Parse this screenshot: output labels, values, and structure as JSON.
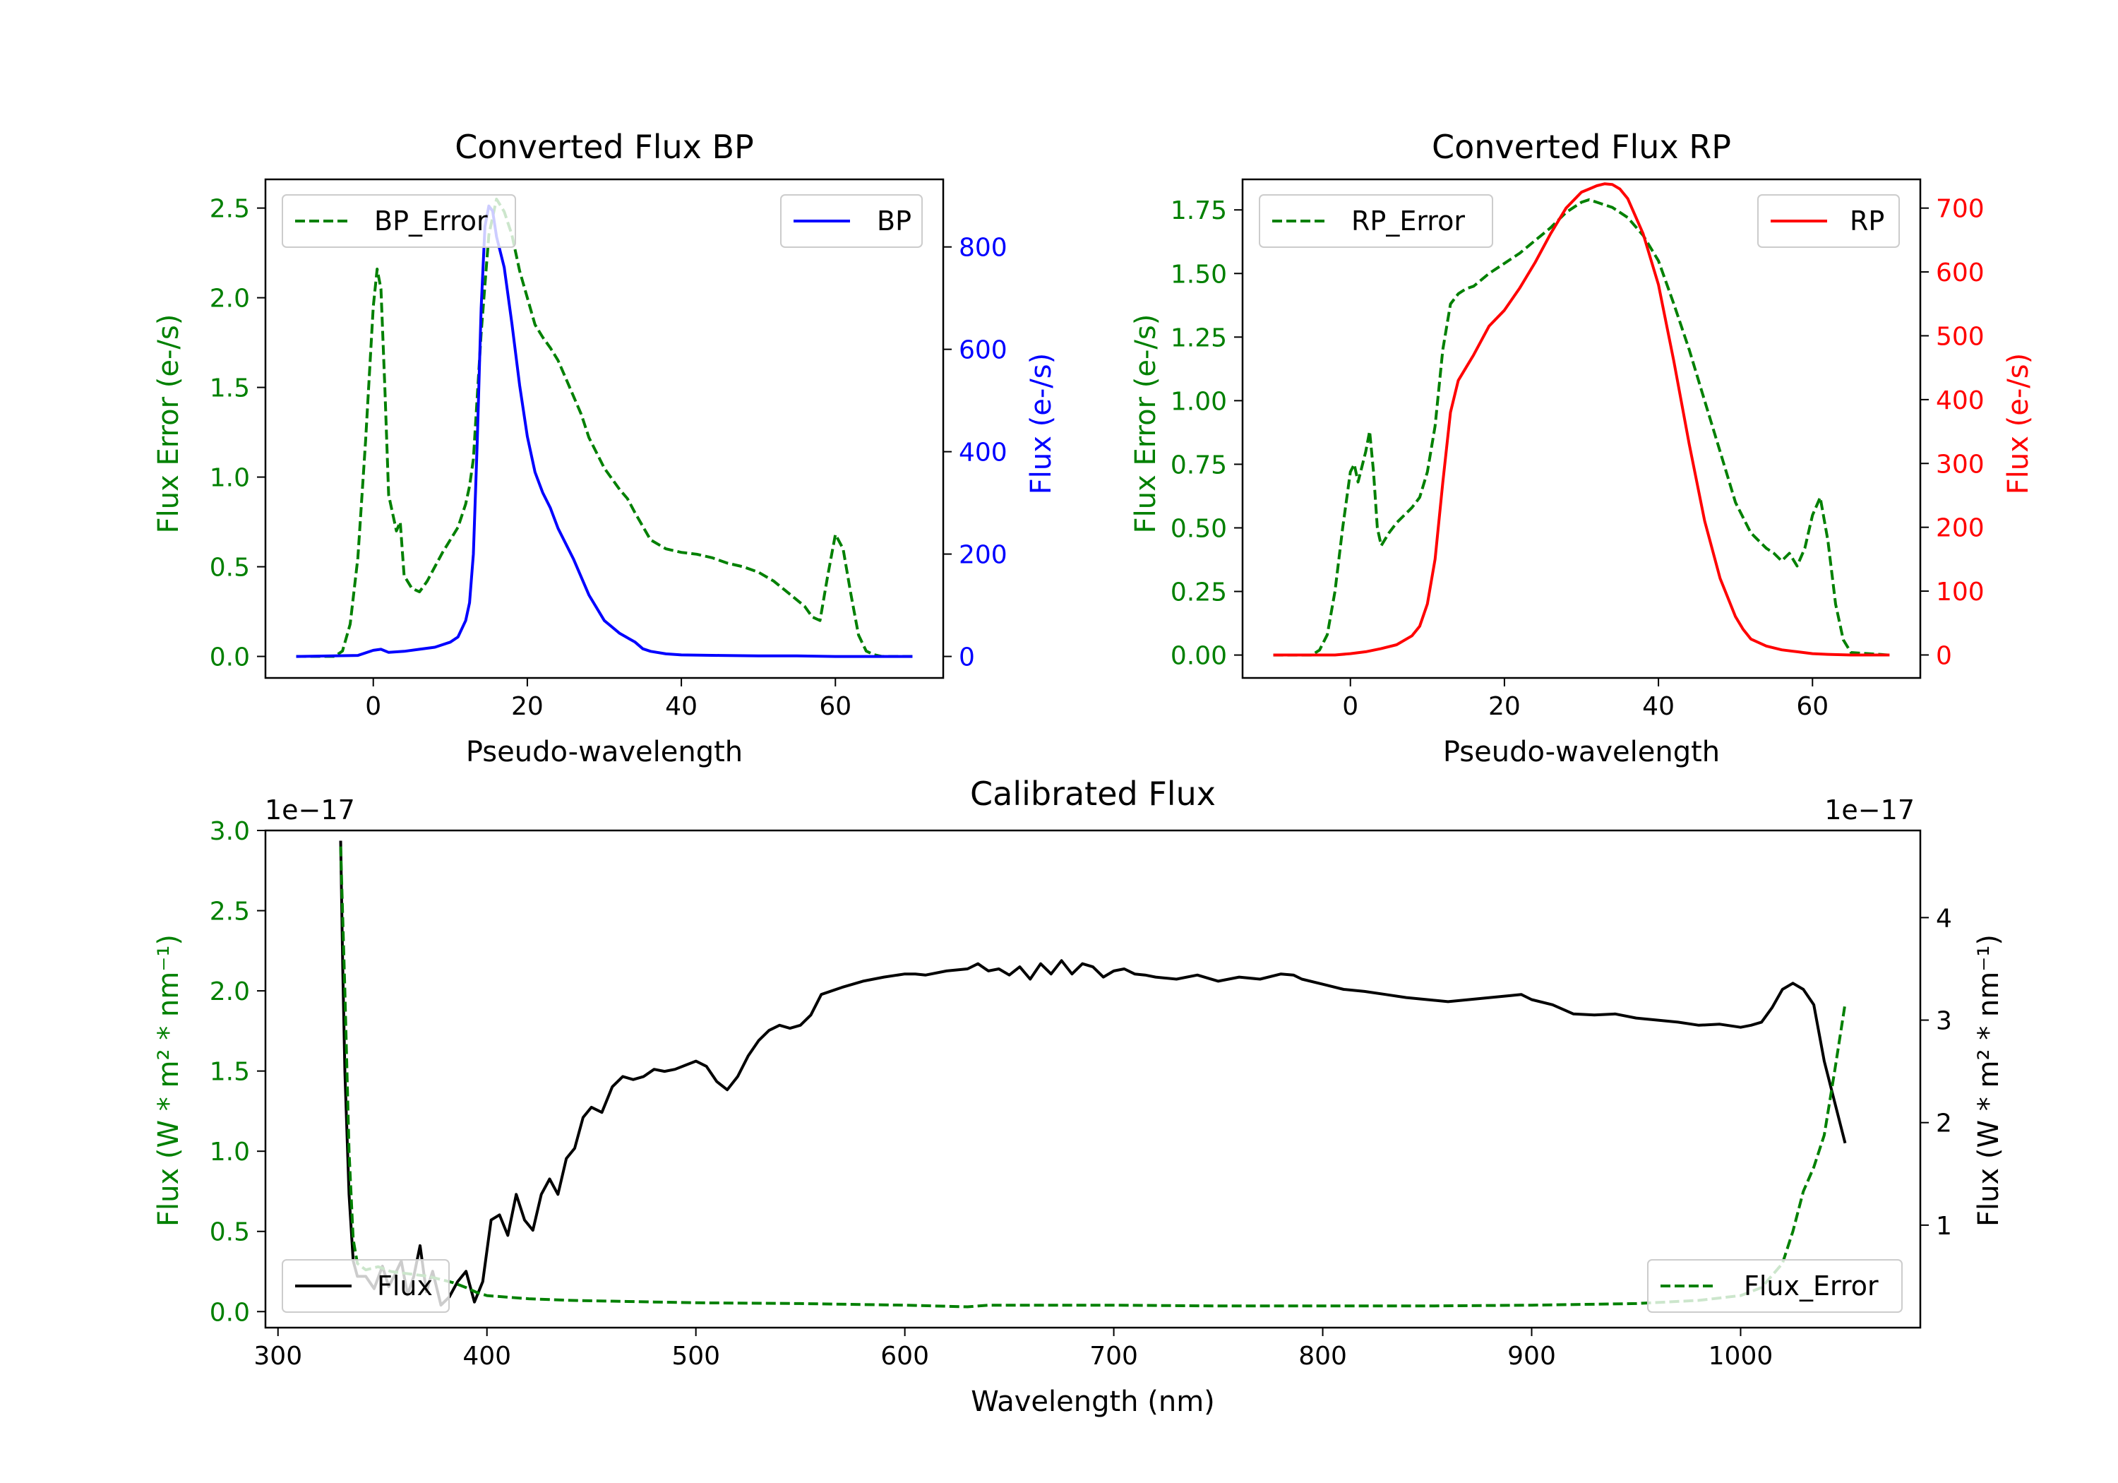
{
  "figure": {
    "background": "#ffffff"
  },
  "chart_data": [
    {
      "id": "bp",
      "type": "line",
      "title": "Converted Flux BP",
      "xlabel": "Pseudo-wavelength",
      "xlim": [
        -14,
        74
      ],
      "xticks": [
        0,
        20,
        40,
        60
      ],
      "left_axis": {
        "label": "Flux Error (e-/s)",
        "color": "#008000",
        "ylim": [
          -0.12,
          2.66
        ],
        "ticks": [
          "0.0",
          "0.5",
          "1.0",
          "1.5",
          "2.0",
          "2.5"
        ],
        "tick_values": [
          0,
          0.5,
          1.0,
          1.5,
          2.0,
          2.5
        ]
      },
      "right_axis": {
        "label": "Flux (e-/s)",
        "color": "#0000ff",
        "ylim": [
          -42,
          932
        ],
        "ticks": [
          "0",
          "200",
          "400",
          "600",
          "800"
        ],
        "tick_values": [
          0,
          200,
          400,
          600,
          800
        ]
      },
      "series": [
        {
          "name": "BP_Error",
          "axis": "left",
          "style": "dashed",
          "color": "#008000",
          "x": [
            -10,
            -5,
            -4,
            -3,
            -2,
            -1,
            0,
            0.5,
            1,
            1.5,
            2,
            3,
            3.5,
            4,
            5,
            6,
            7,
            8,
            9,
            10,
            11,
            12,
            12.5,
            13,
            14,
            15,
            16,
            17,
            18,
            19,
            20,
            21,
            22,
            23,
            24,
            25,
            26,
            27,
            28,
            30,
            32,
            33,
            34,
            36,
            38,
            40,
            42,
            44,
            46,
            48,
            50,
            52,
            54,
            56,
            57,
            58,
            59,
            60,
            61,
            62,
            63,
            64,
            65,
            66,
            70
          ],
          "values": [
            0.0,
            0.0,
            0.03,
            0.18,
            0.55,
            1.2,
            1.95,
            2.16,
            2.05,
            1.5,
            0.9,
            0.7,
            0.75,
            0.45,
            0.38,
            0.36,
            0.42,
            0.5,
            0.58,
            0.65,
            0.72,
            0.85,
            0.95,
            1.1,
            1.8,
            2.35,
            2.55,
            2.48,
            2.35,
            2.15,
            2.0,
            1.85,
            1.78,
            1.72,
            1.65,
            1.55,
            1.45,
            1.35,
            1.22,
            1.05,
            0.93,
            0.88,
            0.8,
            0.65,
            0.6,
            0.58,
            0.57,
            0.55,
            0.52,
            0.5,
            0.47,
            0.42,
            0.35,
            0.28,
            0.22,
            0.2,
            0.45,
            0.68,
            0.6,
            0.35,
            0.12,
            0.03,
            0.01,
            0.0,
            0.0
          ]
        },
        {
          "name": "BP",
          "axis": "right",
          "style": "solid",
          "color": "#0000ff",
          "x": [
            -10,
            -2,
            0,
            1,
            2,
            4,
            6,
            8,
            10,
            11,
            12,
            12.5,
            13,
            13.5,
            14,
            14.5,
            15,
            15.5,
            16,
            17,
            18,
            19,
            20,
            21,
            22,
            23,
            24,
            26,
            28,
            30,
            32,
            34,
            35,
            36,
            38,
            40,
            45,
            50,
            55,
            60,
            65,
            70
          ],
          "values": [
            0,
            2,
            12,
            14,
            8,
            10,
            14,
            18,
            28,
            38,
            70,
            105,
            200,
            420,
            680,
            840,
            880,
            870,
            820,
            760,
            650,
            530,
            430,
            360,
            320,
            290,
            250,
            190,
            120,
            70,
            45,
            28,
            15,
            10,
            5,
            3,
            2,
            1,
            1,
            0,
            0,
            0
          ]
        }
      ],
      "legends": [
        {
          "label": "BP_Error",
          "loc": "upper left"
        },
        {
          "label": "BP",
          "loc": "upper right"
        }
      ]
    },
    {
      "id": "rp",
      "type": "line",
      "title": "Converted Flux RP",
      "xlabel": "Pseudo-wavelength",
      "xlim": [
        -14,
        74
      ],
      "xticks": [
        0,
        20,
        40,
        60
      ],
      "left_axis": {
        "label": "Flux Error (e-/s)",
        "color": "#008000",
        "ylim": [
          -0.09,
          1.87
        ],
        "ticks": [
          "0.00",
          "0.25",
          "0.50",
          "0.75",
          "1.00",
          "1.25",
          "1.50",
          "1.75"
        ],
        "tick_values": [
          0,
          0.25,
          0.5,
          0.75,
          1.0,
          1.25,
          1.5,
          1.75
        ]
      },
      "right_axis": {
        "label": "Flux (e-/s)",
        "color": "#ff0000",
        "ylim": [
          -36,
          745
        ],
        "ticks": [
          "0",
          "100",
          "200",
          "300",
          "400",
          "500",
          "600",
          "700"
        ],
        "tick_values": [
          0,
          100,
          200,
          300,
          400,
          500,
          600,
          700
        ]
      },
      "series": [
        {
          "name": "RP_Error",
          "axis": "left",
          "style": "dashed",
          "color": "#008000",
          "x": [
            -10,
            -5,
            -4,
            -3,
            -2,
            -1,
            0,
            0.5,
            1,
            2,
            2.5,
            3,
            3.5,
            4,
            5,
            6,
            7,
            8,
            9,
            10,
            11,
            12,
            13,
            14,
            15,
            16,
            18,
            20,
            22,
            24,
            26,
            28,
            30,
            31,
            32,
            33,
            34,
            36,
            38,
            40,
            42,
            44,
            46,
            48,
            50,
            52,
            54,
            55,
            56,
            57,
            58,
            59,
            60,
            61,
            62,
            63,
            64,
            65,
            70
          ],
          "values": [
            0.0,
            0.0,
            0.02,
            0.08,
            0.25,
            0.5,
            0.72,
            0.75,
            0.68,
            0.8,
            0.88,
            0.72,
            0.5,
            0.43,
            0.48,
            0.52,
            0.55,
            0.58,
            0.62,
            0.72,
            0.9,
            1.2,
            1.38,
            1.42,
            1.44,
            1.45,
            1.5,
            1.54,
            1.58,
            1.63,
            1.68,
            1.74,
            1.78,
            1.79,
            1.78,
            1.77,
            1.76,
            1.72,
            1.65,
            1.55,
            1.38,
            1.2,
            1.0,
            0.8,
            0.6,
            0.48,
            0.42,
            0.4,
            0.37,
            0.4,
            0.35,
            0.42,
            0.55,
            0.62,
            0.45,
            0.2,
            0.06,
            0.01,
            0.0
          ]
        },
        {
          "name": "RP",
          "axis": "right",
          "style": "solid",
          "color": "#ff0000",
          "x": [
            -10,
            -2,
            0,
            2,
            4,
            6,
            8,
            9,
            10,
            11,
            12,
            13,
            14,
            15,
            16,
            18,
            20,
            22,
            24,
            26,
            28,
            30,
            31,
            32,
            33,
            34,
            35,
            36,
            38,
            40,
            42,
            44,
            46,
            48,
            50,
            51,
            52,
            54,
            56,
            58,
            60,
            62,
            65,
            70
          ],
          "values": [
            0,
            0,
            2,
            5,
            10,
            16,
            30,
            45,
            80,
            150,
            270,
            380,
            430,
            450,
            470,
            515,
            540,
            575,
            615,
            660,
            700,
            725,
            730,
            735,
            738,
            737,
            730,
            715,
            660,
            580,
            460,
            330,
            210,
            120,
            60,
            40,
            25,
            14,
            8,
            5,
            2,
            1,
            0,
            0
          ]
        }
      ],
      "legends": [
        {
          "label": "RP_Error",
          "loc": "upper left"
        },
        {
          "label": "RP",
          "loc": "upper right"
        }
      ]
    },
    {
      "id": "cal",
      "type": "line",
      "title": "Calibrated Flux",
      "xlabel": "Wavelength (nm)",
      "xlim": [
        294,
        1086
      ],
      "xticks": [
        300,
        400,
        500,
        600,
        700,
        800,
        900,
        1000
      ],
      "left_axis": {
        "label": "Flux (W * m² * nm⁻¹)",
        "color": "#008000",
        "offset_text": "1e−17",
        "ylim": [
          -0.1,
          3.0
        ],
        "ticks": [
          "0.0",
          "0.5",
          "1.0",
          "1.5",
          "2.0",
          "2.5",
          "3.0"
        ],
        "tick_values": [
          0,
          0.5,
          1.0,
          1.5,
          2.0,
          2.5,
          3.0
        ]
      },
      "right_axis": {
        "label": "Flux (W * m² * nm⁻¹)",
        "color": "#000000",
        "offset_text": "1e−17",
        "ylim": [
          0.0,
          4.85
        ],
        "ticks": [
          "1",
          "2",
          "3",
          "4"
        ],
        "tick_values": [
          1,
          2,
          3,
          4
        ]
      },
      "series": [
        {
          "name": "Flux",
          "axis": "right",
          "style": "solid",
          "color": "#000000",
          "x": [
            330,
            331,
            332,
            334,
            336,
            338,
            342,
            346,
            350,
            353,
            356,
            359,
            362,
            365,
            368,
            371,
            374,
            378,
            382,
            386,
            390,
            394,
            398,
            402,
            406,
            410,
            414,
            418,
            422,
            426,
            430,
            434,
            438,
            442,
            446,
            450,
            455,
            460,
            465,
            470,
            475,
            480,
            485,
            490,
            495,
            500,
            505,
            510,
            515,
            520,
            525,
            530,
            535,
            540,
            545,
            550,
            555,
            560,
            570,
            580,
            590,
            600,
            605,
            610,
            620,
            630,
            635,
            640,
            645,
            650,
            655,
            660,
            665,
            670,
            675,
            680,
            685,
            690,
            695,
            700,
            705,
            710,
            715,
            720,
            730,
            740,
            750,
            760,
            770,
            780,
            786,
            790,
            800,
            810,
            820,
            830,
            840,
            850,
            860,
            870,
            880,
            890,
            895,
            900,
            910,
            920,
            930,
            940,
            950,
            960,
            970,
            980,
            990,
            1000,
            1005,
            1010,
            1015,
            1020,
            1025,
            1030,
            1035,
            1040,
            1045,
            1050
          ],
          "values": [
            4.75,
            3.5,
            2.5,
            1.3,
            0.65,
            0.5,
            0.5,
            0.38,
            0.6,
            0.4,
            0.52,
            0.65,
            0.32,
            0.5,
            0.8,
            0.35,
            0.55,
            0.22,
            0.3,
            0.45,
            0.55,
            0.25,
            0.45,
            1.05,
            1.1,
            0.9,
            1.3,
            1.05,
            0.95,
            1.3,
            1.45,
            1.3,
            1.65,
            1.75,
            2.05,
            2.15,
            2.1,
            2.35,
            2.45,
            2.42,
            2.45,
            2.52,
            2.5,
            2.52,
            2.56,
            2.6,
            2.55,
            2.4,
            2.32,
            2.45,
            2.65,
            2.8,
            2.9,
            2.95,
            2.92,
            2.95,
            3.05,
            3.25,
            3.32,
            3.38,
            3.42,
            3.45,
            3.45,
            3.44,
            3.48,
            3.5,
            3.55,
            3.48,
            3.5,
            3.44,
            3.52,
            3.4,
            3.55,
            3.45,
            3.58,
            3.45,
            3.55,
            3.52,
            3.42,
            3.48,
            3.5,
            3.45,
            3.44,
            3.42,
            3.4,
            3.44,
            3.38,
            3.42,
            3.4,
            3.45,
            3.44,
            3.4,
            3.35,
            3.3,
            3.28,
            3.25,
            3.22,
            3.2,
            3.18,
            3.2,
            3.22,
            3.24,
            3.25,
            3.2,
            3.15,
            3.06,
            3.05,
            3.06,
            3.02,
            3.0,
            2.98,
            2.95,
            2.96,
            2.93,
            2.95,
            2.98,
            3.12,
            3.3,
            3.36,
            3.3,
            3.15,
            2.6,
            2.2,
            1.8
          ]
        },
        {
          "name": "Flux_Error",
          "axis": "left",
          "style": "dashed",
          "color": "#008000",
          "x": [
            330,
            332,
            334,
            336,
            338,
            342,
            348,
            354,
            360,
            366,
            372,
            378,
            384,
            390,
            395,
            400,
            410,
            420,
            440,
            460,
            480,
            500,
            550,
            600,
            630,
            640,
            700,
            750,
            800,
            850,
            900,
            950,
            980,
            1000,
            1010,
            1020,
            1025,
            1030,
            1035,
            1040,
            1045,
            1050
          ],
          "values": [
            2.9,
            2.0,
            1.0,
            0.45,
            0.3,
            0.26,
            0.28,
            0.25,
            0.24,
            0.23,
            0.22,
            0.2,
            0.18,
            0.15,
            0.12,
            0.1,
            0.09,
            0.08,
            0.07,
            0.065,
            0.06,
            0.055,
            0.05,
            0.04,
            0.03,
            0.04,
            0.04,
            0.035,
            0.035,
            0.035,
            0.04,
            0.05,
            0.07,
            0.1,
            0.15,
            0.3,
            0.5,
            0.75,
            0.9,
            1.1,
            1.5,
            1.92
          ]
        }
      ],
      "legends": [
        {
          "label": "Flux",
          "loc": "lower left"
        },
        {
          "label": "Flux_Error",
          "loc": "lower right"
        }
      ]
    }
  ]
}
